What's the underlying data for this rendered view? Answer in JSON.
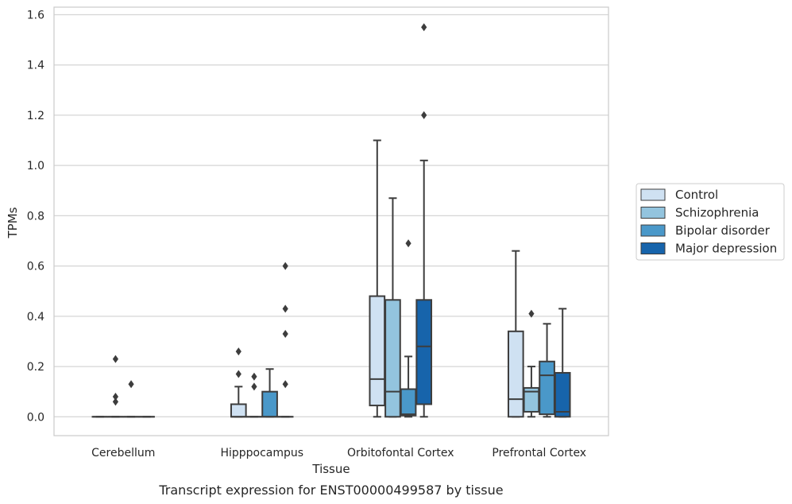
{
  "caption": "Transcript expression for ENST00000499587 by tissue",
  "chart_data": {
    "type": "boxplot",
    "xlabel": "Tissue",
    "ylabel": "TPMs",
    "ylim": [
      -0.075,
      1.63
    ],
    "yticks": [
      "0.0",
      "0.2",
      "0.4",
      "0.6",
      "0.8",
      "1.0",
      "1.2",
      "1.4",
      "1.6"
    ],
    "grid": true,
    "legend_position": "right",
    "categories": [
      "Cerebellum",
      "Hipppocampus",
      "Orbitofontal Cortex",
      "Prefrontal Cortex"
    ],
    "series": [
      {
        "name": "Control",
        "color": "#cfe1f2",
        "boxes": [
          {
            "whislo": 0,
            "q1": 0,
            "med": 0,
            "q3": 0,
            "whishi": 0,
            "fliers": []
          },
          {
            "whislo": 0,
            "q1": 0,
            "med": 0,
            "q3": 0.05,
            "whishi": 0.12,
            "fliers": [
              0.17,
              0.26
            ]
          },
          {
            "whislo": 0,
            "q1": 0.045,
            "med": 0.15,
            "q3": 0.48,
            "whishi": 1.1,
            "fliers": []
          },
          {
            "whislo": 0,
            "q1": 0,
            "med": 0.07,
            "q3": 0.34,
            "whishi": 0.66,
            "fliers": []
          }
        ]
      },
      {
        "name": "Schizophrenia",
        "color": "#93c4de",
        "boxes": [
          {
            "whislo": 0,
            "q1": 0,
            "med": 0,
            "q3": 0,
            "whishi": 0,
            "fliers": [
              0.06,
              0.08,
              0.23
            ]
          },
          {
            "whislo": 0,
            "q1": 0,
            "med": 0,
            "q3": 0,
            "whishi": 0,
            "fliers": [
              0.12,
              0.16
            ]
          },
          {
            "whislo": 0,
            "q1": 0,
            "med": 0.1,
            "q3": 0.465,
            "whishi": 0.87,
            "fliers": []
          },
          {
            "whislo": 0,
            "q1": 0.02,
            "med": 0.1,
            "q3": 0.115,
            "whishi": 0.2,
            "fliers": [
              0.41
            ]
          }
        ]
      },
      {
        "name": "Bipolar disorder",
        "color": "#4a98c9",
        "boxes": [
          {
            "whislo": 0,
            "q1": 0,
            "med": 0,
            "q3": 0,
            "whishi": 0,
            "fliers": [
              0.13
            ]
          },
          {
            "whislo": 0,
            "q1": 0,
            "med": 0,
            "q3": 0.1,
            "whishi": 0.19,
            "fliers": []
          },
          {
            "whislo": 0,
            "q1": 0.005,
            "med": 0.01,
            "q3": 0.11,
            "whishi": 0.24,
            "fliers": [
              0.69
            ]
          },
          {
            "whislo": 0,
            "q1": 0.01,
            "med": 0.165,
            "q3": 0.22,
            "whishi": 0.37,
            "fliers": []
          }
        ]
      },
      {
        "name": "Major depression",
        "color": "#1764ab",
        "boxes": [
          {
            "whislo": 0,
            "q1": 0,
            "med": 0,
            "q3": 0,
            "whishi": 0,
            "fliers": []
          },
          {
            "whislo": 0,
            "q1": 0,
            "med": 0,
            "q3": 0,
            "whishi": 0,
            "fliers": [
              0.13,
              0.33,
              0.43,
              0.6
            ]
          },
          {
            "whislo": 0,
            "q1": 0.05,
            "med": 0.28,
            "q3": 0.465,
            "whishi": 1.02,
            "fliers": [
              1.2,
              1.55
            ]
          },
          {
            "whislo": 0,
            "q1": 0,
            "med": 0.02,
            "q3": 0.175,
            "whishi": 0.43,
            "fliers": []
          }
        ]
      }
    ]
  }
}
